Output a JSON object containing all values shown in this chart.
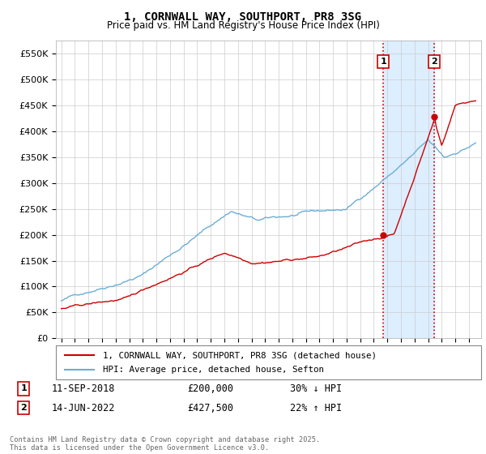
{
  "title": "1, CORNWALL WAY, SOUTHPORT, PR8 3SG",
  "subtitle": "Price paid vs. HM Land Registry's House Price Index (HPI)",
  "ytick_values": [
    0,
    50000,
    100000,
    150000,
    200000,
    250000,
    300000,
    350000,
    400000,
    450000,
    500000,
    550000
  ],
  "ylim": [
    0,
    575000
  ],
  "sale1_date": "11-SEP-2018",
  "sale1_price": 200000,
  "sale1_hpi_pct": "30% ↓ HPI",
  "sale2_date": "14-JUN-2022",
  "sale2_price": 427500,
  "sale2_hpi_pct": "22% ↑ HPI",
  "sale1_x": 2018.69,
  "sale2_x": 2022.45,
  "hpi_color": "#6baed6",
  "price_color": "#cc0000",
  "vline_color": "#cc0000",
  "shade_color": "#ddeeff",
  "legend_hpi": "HPI: Average price, detached house, Sefton",
  "legend_price": "1, CORNWALL WAY, SOUTHPORT, PR8 3SG (detached house)",
  "footer": "Contains HM Land Registry data © Crown copyright and database right 2025.\nThis data is licensed under the Open Government Licence v3.0.",
  "background_color": "#ffffff"
}
